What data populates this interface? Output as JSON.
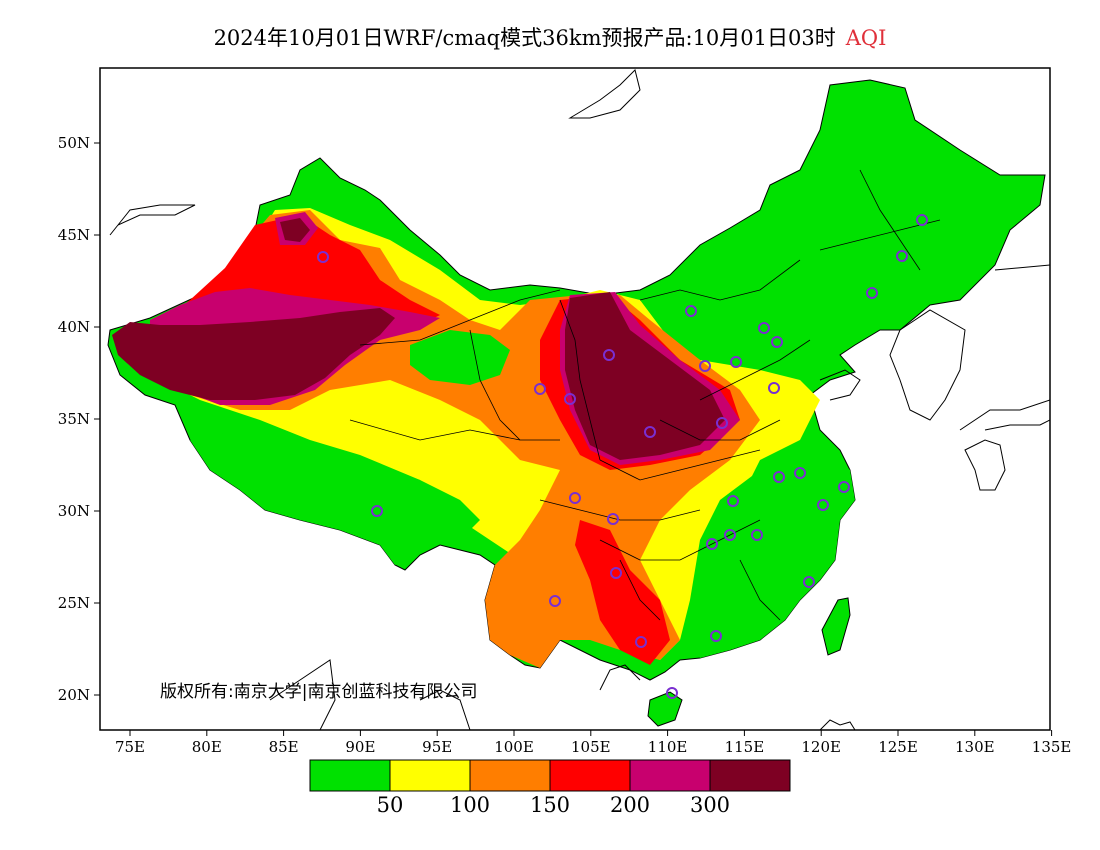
{
  "title": {
    "main": "2024年10月01日WRF/cmaq模式36km预报产品:10月01日03时",
    "variable": "AQI"
  },
  "copyright": "版权所有:南京大学|南京创蓝科技有限公司",
  "axes": {
    "lat_labels": [
      "50N",
      "45N",
      "40N",
      "35N",
      "30N",
      "25N",
      "20N"
    ],
    "lon_labels": [
      "75E",
      "80E",
      "85E",
      "90E",
      "95E",
      "100E",
      "105E",
      "110E",
      "115E",
      "120E",
      "125E",
      "130E",
      "135E"
    ]
  },
  "legend": {
    "colors": [
      "#00e100",
      "#ffff00",
      "#ff7e00",
      "#ff0000",
      "#c8006e",
      "#7e0023"
    ],
    "labels": [
      "50",
      "100",
      "150",
      "200",
      "300"
    ]
  },
  "chart_data": {
    "type": "heatmap",
    "variable": "AQI",
    "lon_range": [
      73,
      135
    ],
    "lat_range": [
      18,
      54
    ],
    "color_bins": [
      {
        "min": 0,
        "max": 50,
        "color": "#00e100"
      },
      {
        "min": 50,
        "max": 100,
        "color": "#ffff00"
      },
      {
        "min": 100,
        "max": 150,
        "color": "#ff7e00"
      },
      {
        "min": 150,
        "max": 200,
        "color": "#ff0000"
      },
      {
        "min": 200,
        "max": 300,
        "color": "#c8006e"
      },
      {
        "min": 300,
        "max": null,
        "color": "#7e0023"
      }
    ]
  }
}
